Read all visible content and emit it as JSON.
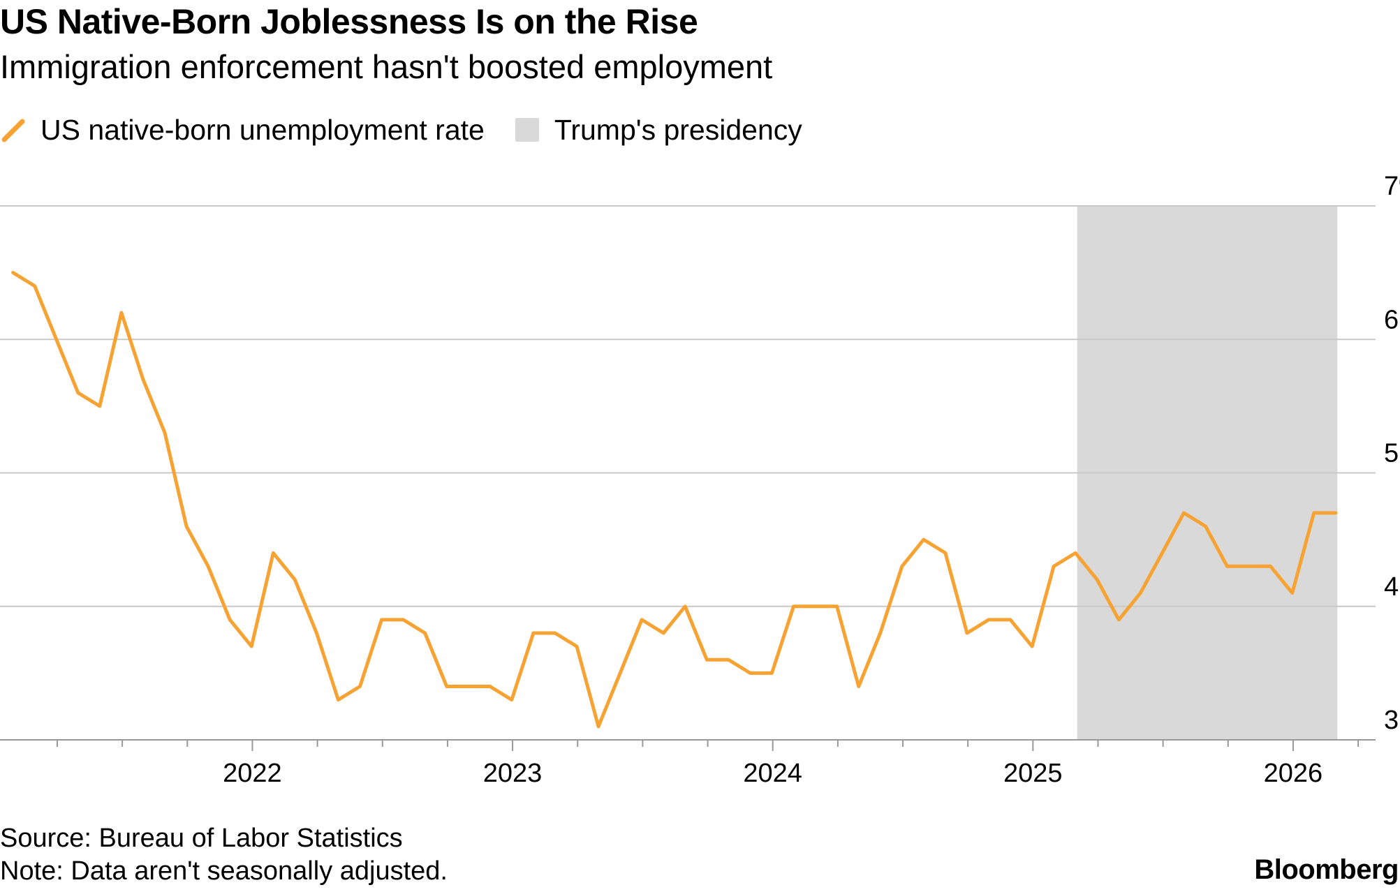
{
  "header": {
    "title": "US Native-Born Joblessness Is on the Rise",
    "subtitle": "Immigration enforcement hasn't boosted employment"
  },
  "legend": {
    "series_label": "US native-born unemployment rate",
    "shade_label": "Trump's presidency"
  },
  "footer": {
    "source": "Source: Bureau of Labor Statistics",
    "note": "Note: Data aren't seasonally adjusted.",
    "brand": "Bloomberg"
  },
  "colors": {
    "line": "#f7a334",
    "shade": "#d9d9d9",
    "grid": "#c8c8c8",
    "axis": "#999999"
  },
  "chart_data": {
    "type": "line",
    "title": "US Native-Born Joblessness Is on the Rise",
    "subtitle": "Immigration enforcement hasn't boosted employment",
    "xlabel": "",
    "ylabel": "",
    "ylim": [
      3,
      7
    ],
    "y_ticks": [
      3,
      4,
      5,
      6,
      7
    ],
    "y_tick_labels": [
      "3",
      "4",
      "5",
      "6",
      "7%"
    ],
    "x_ticks": [
      {
        "label": "2022",
        "value": 2022.0
      },
      {
        "label": "2023",
        "value": 2023.0
      },
      {
        "label": "2024",
        "value": 2024.0
      },
      {
        "label": "2025",
        "value": 2025.0
      },
      {
        "label": "2026",
        "value": 2026.0
      }
    ],
    "xlim": [
      2021.03,
      2026.29
    ],
    "grid": true,
    "legend_position": "top-left",
    "shaded_region": {
      "label": "Trump's presidency",
      "start": 2025.17,
      "end": 2026.17
    },
    "series": [
      {
        "name": "US native-born unemployment rate",
        "start": 2021.08,
        "step_months": 1,
        "values": [
          6.5,
          6.4,
          6.0,
          5.6,
          5.5,
          6.2,
          5.7,
          5.3,
          4.6,
          4.3,
          3.9,
          3.7,
          4.4,
          4.2,
          3.8,
          3.3,
          3.4,
          3.9,
          3.9,
          3.8,
          3.4,
          3.4,
          3.4,
          3.3,
          3.8,
          3.8,
          3.7,
          3.1,
          3.5,
          3.9,
          3.8,
          4.0,
          3.6,
          3.6,
          3.5,
          3.5,
          4.0,
          4.0,
          4.0,
          3.4,
          3.8,
          4.3,
          4.5,
          4.4,
          3.8,
          3.9,
          3.9,
          3.7,
          4.3,
          4.4,
          4.2,
          3.9,
          4.1,
          4.4,
          4.7,
          4.6,
          4.3,
          4.3,
          4.3,
          4.1,
          4.7,
          4.7
        ]
      }
    ]
  }
}
